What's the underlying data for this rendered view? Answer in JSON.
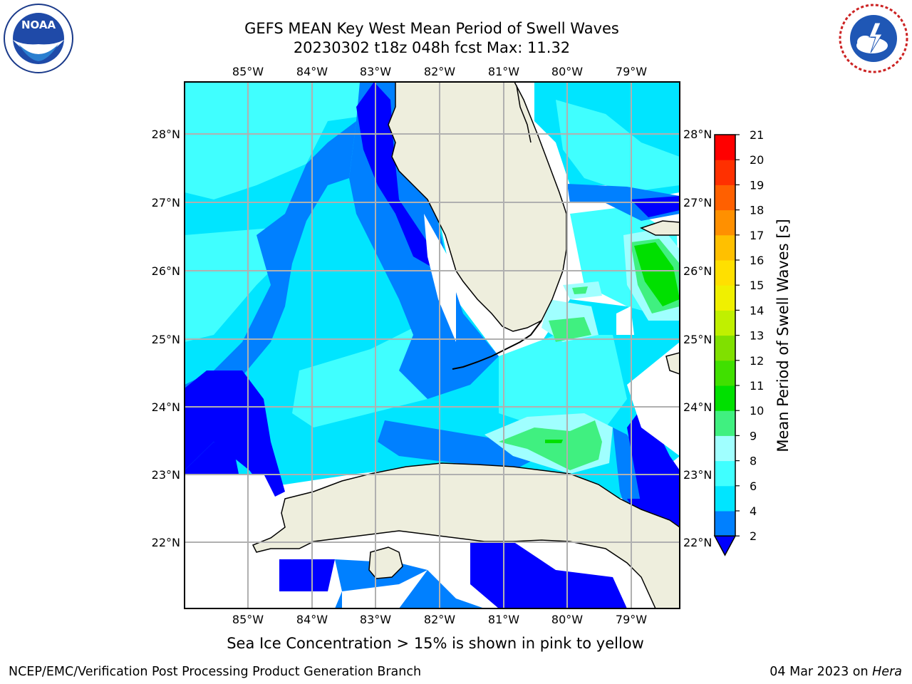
{
  "header": {
    "title_line1": "GEFS MEAN Key West Mean Period of Swell Waves",
    "title_line2": "20230302 t18z 048h fcst   Max: 11.32"
  },
  "logos": {
    "left": {
      "icon": "noaa-logo",
      "text": "NOAA",
      "ring_text": "NATIONAL OCEANIC AND ATMOSPHERIC ADMINISTRATION · U.S. DEPARTMENT OF COMMERCE"
    },
    "right": {
      "icon": "national-weather-service-logo",
      "ring_text": "NATIONAL WEATHER SERVICE"
    }
  },
  "map": {
    "lon_labels": [
      "85°W",
      "84°W",
      "83°W",
      "82°W",
      "81°W",
      "80°W",
      "79°W"
    ],
    "lat_labels": [
      "28°N",
      "27°N",
      "26°N",
      "25°N",
      "24°N",
      "23°N",
      "22°N"
    ],
    "colors": {
      "land": "#eeeedd",
      "coast": "#000000",
      "grid": "#b0b0b0",
      "nodata": "#ffffff"
    }
  },
  "colorbar": {
    "label": "Mean Period of Swell Waves [s]",
    "ticks": [
      "2",
      "4",
      "6",
      "8",
      "9",
      "10",
      "11",
      "12",
      "13",
      "14",
      "15",
      "16",
      "17",
      "18",
      "19",
      "20",
      "21"
    ],
    "colors": [
      "#0000ff",
      "#0080ff",
      "#00e5ff",
      "#40ffff",
      "#a0ffff",
      "#40f080",
      "#00e000",
      "#40e000",
      "#80e000",
      "#c0f000",
      "#f0f000",
      "#ffe000",
      "#ffc000",
      "#ff9000",
      "#ff6000",
      "#ff3000",
      "#ff0000"
    ]
  },
  "footnote": "Sea Ice Concentration > 15% is shown in pink to yellow",
  "footer": {
    "left": "NCEP/EMC/Verification Post Processing Product Generation Branch",
    "date": "04 Mar 2023 on ",
    "machine": "Hera"
  }
}
